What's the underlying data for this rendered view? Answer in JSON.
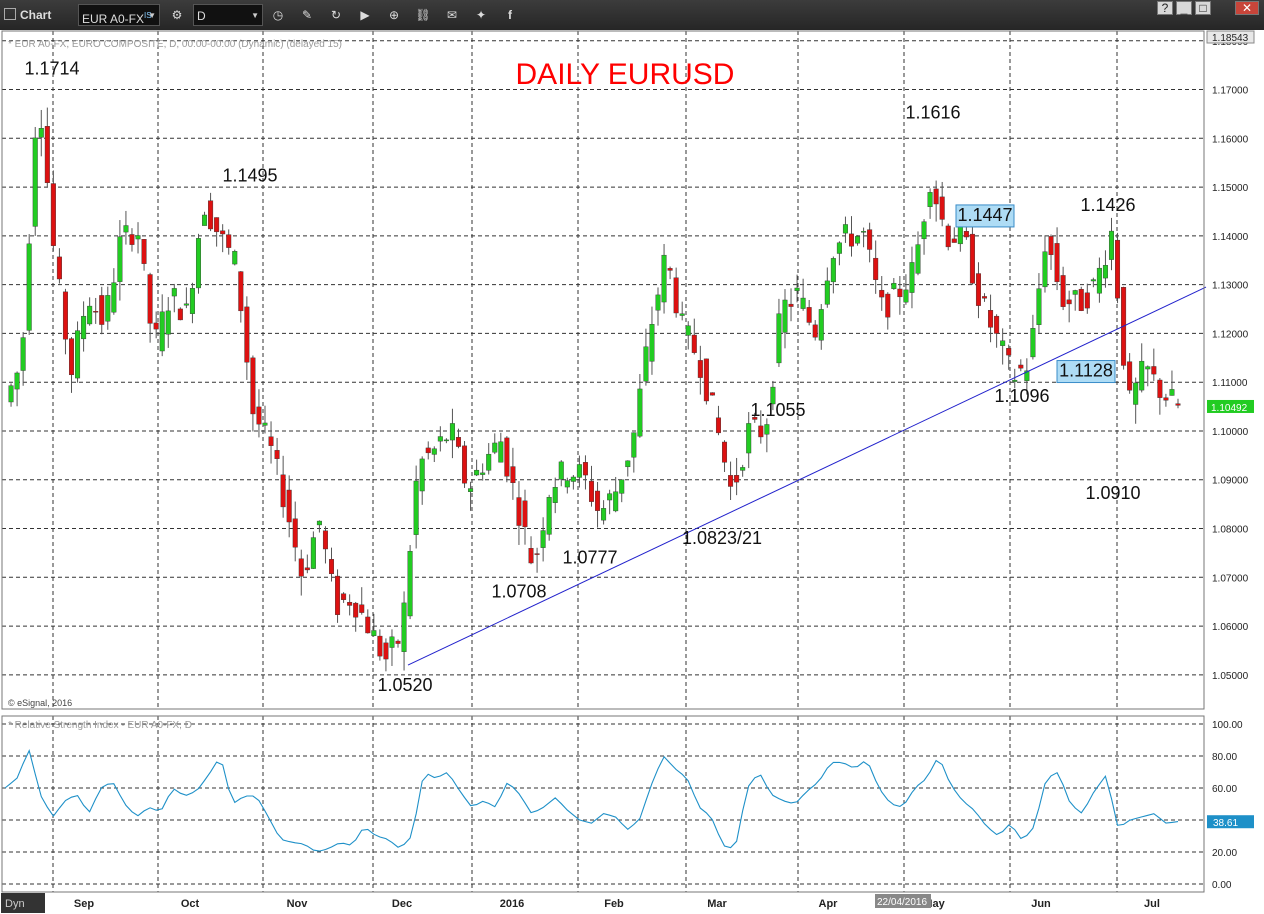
{
  "toolbar": {
    "title": "Chart",
    "symbol": "EUR A0-FX",
    "symbol_sup": "IS",
    "interval": "D",
    "icons": [
      "settings-icon",
      "clock-icon",
      "pencil-icon",
      "refresh-icon",
      "play-icon",
      "zoom-icon",
      "link-icon",
      "comment-icon",
      "twitter-icon",
      "facebook-icon"
    ],
    "window_buttons": [
      "?",
      "_",
      "□",
      "✕"
    ]
  },
  "chart_data": [
    {
      "type": "candlestick",
      "title": "DAILY EURUSD",
      "title_color": "#ff0000",
      "subtitle": "* EUR A0-FX, EURO COMPOSITE, D, 00:00-00:00 (Dynamic) (delayed 15)",
      "copyright": "© eSignal, 2016",
      "ylim": [
        1.043,
        1.182
      ],
      "y_ticks": [
        "1.18000",
        "1.17000",
        "1.16000",
        "1.15000",
        "1.14000",
        "1.13000",
        "1.12000",
        "1.11000",
        "1.10000",
        "1.09000",
        "1.08000",
        "1.07000",
        "1.06000",
        "1.05000"
      ],
      "y_tick_values": [
        1.18,
        1.17,
        1.16,
        1.15,
        1.14,
        1.13,
        1.12,
        1.11,
        1.1,
        1.09,
        1.08,
        1.07,
        1.06,
        1.05
      ],
      "top_value": "1.18543",
      "last_price": "1.10492",
      "last_price_value": 1.10492,
      "x_labels": [
        "Sep",
        "Oct",
        "Nov",
        "Dec",
        "2016",
        "Feb",
        "Mar",
        "Apr",
        "May",
        "Jun",
        "Jul"
      ],
      "cursor_date": "22/04/2016",
      "up_color": "#22cc22",
      "down_color": "#dd1111",
      "grid": true,
      "annotations": [
        {
          "text": "1.1714",
          "price": 1.1714
        },
        {
          "text": "1.1495",
          "price": 1.1495
        },
        {
          "text": "1.0520",
          "price": 1.052
        },
        {
          "text": "1.0708",
          "price": 1.0708
        },
        {
          "text": "1.0777",
          "price": 1.0777
        },
        {
          "text": "1.0823/21",
          "price": 1.0822
        },
        {
          "text": "1.1055",
          "price": 1.1055
        },
        {
          "text": "1.1616",
          "price": 1.1616
        },
        {
          "text": "1.1447",
          "price": 1.1447,
          "boxed": true
        },
        {
          "text": "1.1426",
          "price": 1.1426
        },
        {
          "text": "1.1096",
          "price": 1.1096
        },
        {
          "text": "1.1128",
          "price": 1.1128,
          "boxed": true
        },
        {
          "text": "1.0910",
          "price": 1.091
        }
      ],
      "trendline": {
        "from_price": 1.052,
        "to_price": 1.1295,
        "color": "#2222cc"
      },
      "anchors": [
        1.106,
        1.114,
        1.172,
        1.135,
        1.112,
        1.128,
        1.122,
        1.139,
        1.142,
        1.117,
        1.128,
        1.124,
        1.147,
        1.14,
        1.134,
        1.104,
        1.097,
        1.085,
        1.07,
        1.082,
        1.064,
        1.066,
        1.06,
        1.053,
        1.058,
        1.093,
        1.096,
        1.1,
        1.088,
        1.094,
        1.098,
        1.085,
        1.072,
        1.089,
        1.092,
        1.091,
        1.083,
        1.088,
        1.098,
        1.12,
        1.136,
        1.121,
        1.115,
        1.102,
        1.087,
        1.1,
        1.1,
        1.125,
        1.128,
        1.12,
        1.137,
        1.14,
        1.14,
        1.125,
        1.128,
        1.133,
        1.152,
        1.14,
        1.14,
        1.127,
        1.119,
        1.111,
        1.114,
        1.14,
        1.127,
        1.126,
        1.13,
        1.141,
        1.105,
        1.113,
        1.108,
        1.105
      ]
    },
    {
      "type": "line",
      "title": "* Relative Strength Index - EUR A0-FX, D",
      "ylim": [
        -5,
        105
      ],
      "y_ticks": [
        "100.00",
        "80.00",
        "60.00",
        "40.00",
        "20.00",
        "0.00"
      ],
      "y_tick_values": [
        100,
        80,
        60,
        40,
        20,
        0
      ],
      "last_value": "38.61",
      "last_value_num": 38.61,
      "line_color": "#1e90c8",
      "anchors": [
        60,
        66,
        84,
        55,
        42,
        52,
        56,
        44,
        60,
        64,
        50,
        42,
        48,
        45,
        60,
        55,
        58,
        68,
        80,
        50,
        55,
        55,
        42,
        28,
        26,
        25,
        20,
        22,
        26,
        24,
        36,
        30,
        28,
        22,
        30,
        70,
        66,
        70,
        58,
        48,
        52,
        48,
        64,
        56,
        44,
        48,
        54,
        46,
        40,
        38,
        44,
        42,
        34,
        40,
        62,
        80,
        72,
        66,
        48,
        42,
        24,
        22,
        60,
        70,
        56,
        52,
        50,
        58,
        64,
        76,
        76,
        72,
        78,
        60,
        50,
        48,
        60,
        66,
        80,
        62,
        52,
        46,
        36,
        30,
        38,
        27,
        36,
        66,
        70,
        50,
        44,
        58,
        68,
        35,
        40,
        42,
        44,
        38,
        39
      ]
    }
  ],
  "footer": {
    "dyn_label": "Dyn"
  }
}
